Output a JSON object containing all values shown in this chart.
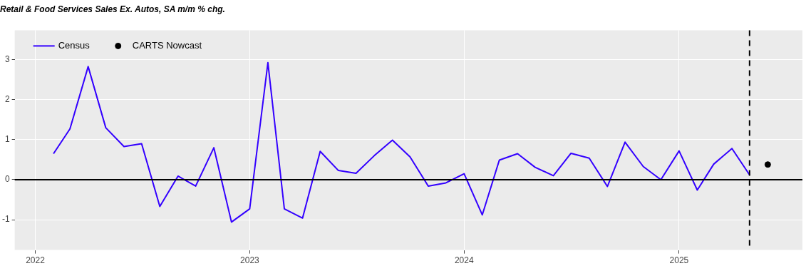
{
  "chart_data": {
    "type": "line",
    "title": "Retail & Food Services Sales Ex. Autos, SA m/m % chg.",
    "x": [
      "2022-02",
      "2022-03",
      "2022-04",
      "2022-05",
      "2022-06",
      "2022-07",
      "2022-08",
      "2022-09",
      "2022-10",
      "2022-11",
      "2022-12",
      "2023-01",
      "2023-02",
      "2023-03",
      "2023-04",
      "2023-05",
      "2023-06",
      "2023-07",
      "2023-08",
      "2023-09",
      "2023-10",
      "2023-11",
      "2023-12",
      "2024-01",
      "2024-02",
      "2024-03",
      "2024-04",
      "2024-05",
      "2024-06",
      "2024-07",
      "2024-08",
      "2024-09",
      "2024-10",
      "2024-11",
      "2024-12",
      "2025-01",
      "2025-02",
      "2025-03",
      "2025-04",
      "2025-05"
    ],
    "series": [
      {
        "name": "Census",
        "color": "#3300ff",
        "values": [
          0.65,
          1.27,
          2.83,
          1.3,
          0.83,
          0.9,
          -0.67,
          0.09,
          -0.16,
          0.8,
          -1.06,
          -0.73,
          2.93,
          -0.73,
          -0.96,
          0.71,
          0.23,
          0.16,
          0.6,
          0.99,
          0.57,
          -0.16,
          -0.08,
          0.15,
          -0.88,
          0.49,
          0.65,
          0.31,
          0.1,
          0.66,
          0.54,
          -0.17,
          0.94,
          0.33,
          0.0,
          0.72,
          -0.26,
          0.39,
          0.78,
          0.12
        ]
      },
      {
        "name": "CARTS Nowcast",
        "type": "scatter",
        "marker": "circle",
        "color": "#000000",
        "x": [
          "2025-06"
        ],
        "values": [
          0.38
        ]
      }
    ],
    "xlim": [
      "2021-11-27",
      "2025-07-30"
    ],
    "xticks": [
      "2022",
      "2023",
      "2024",
      "2025"
    ],
    "ylim": [
      -1.76,
      3.74
    ],
    "yticks": [
      -1,
      0,
      1,
      2,
      3
    ],
    "ref_lines": [
      {
        "axis": "y",
        "value": 0,
        "color": "#000000",
        "line_style": "solid"
      },
      {
        "axis": "x",
        "value": "2025-05",
        "color": "#000000",
        "line_style": "dashed"
      }
    ],
    "grid": true,
    "legend": "top left"
  }
}
